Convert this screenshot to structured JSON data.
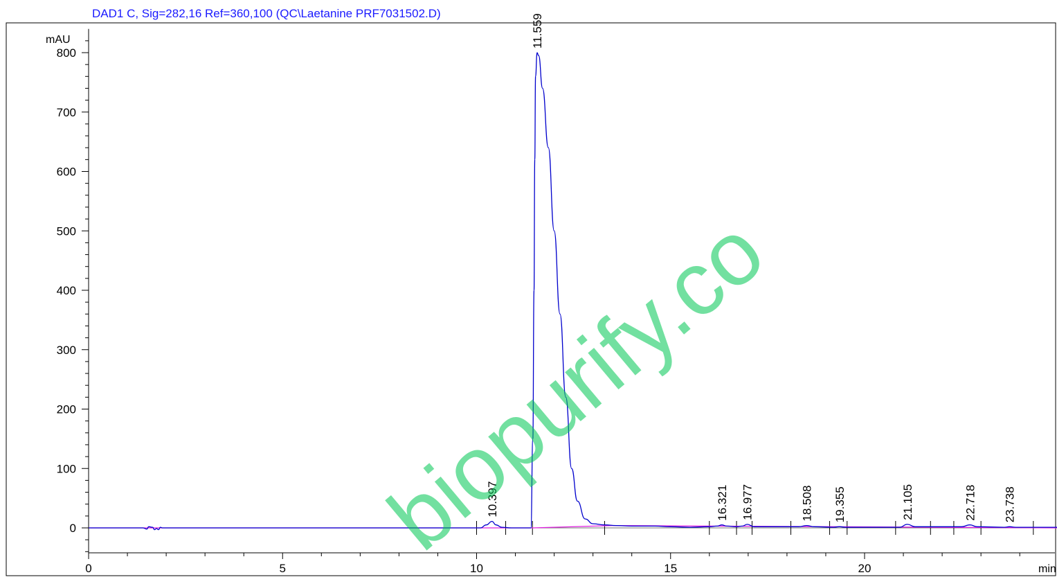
{
  "header": {
    "title": "DAD1 C, Sig=282,16 Ref=360,100 (QC\\Laetanine PRF7031502.D)",
    "watermark": "biopurify.co"
  },
  "colors": {
    "trace": "#0000cc",
    "baseline": "#e020e0",
    "title": "#1a1aff",
    "watermark": "#00c853",
    "axis": "#000000"
  },
  "chart_data": {
    "type": "line",
    "title": "DAD1 C, Sig=282,16 Ref=360,100 (QC\\Laetanine PRF7031502.D)",
    "xlabel": "min",
    "ylabel": "mAU",
    "xlim": [
      0,
      25
    ],
    "ylim": [
      -42,
      840
    ],
    "x_ticks": [
      0,
      5,
      10,
      15,
      20
    ],
    "y_ticks": [
      0,
      100,
      200,
      300,
      400,
      500,
      600,
      700,
      800
    ],
    "grid": false,
    "series": [
      {
        "x": [
          0,
          1.4,
          1.5,
          1.55,
          1.65,
          1.7,
          1.75,
          1.8,
          1.85,
          1.9,
          2.0,
          6.0,
          7.0,
          9.8,
          10.1,
          10.25,
          10.397,
          10.5,
          10.65,
          10.9,
          11.2,
          11.4,
          11.45,
          11.48,
          11.5,
          11.52,
          11.559,
          11.6,
          11.7,
          11.85,
          12.0,
          12.15,
          12.3,
          12.45,
          12.6,
          12.8,
          13.0,
          13.3,
          13.6,
          14.0,
          14.6,
          15.0,
          15.5,
          16.0,
          16.2,
          16.321,
          16.45,
          16.7,
          16.85,
          16.977,
          17.15,
          17.5,
          18.3,
          18.508,
          18.7,
          19.2,
          19.355,
          19.5,
          20.9,
          21.105,
          21.3,
          22.5,
          22.718,
          22.9,
          23.6,
          23.738,
          23.9,
          25.0
        ],
        "y": [
          0,
          0,
          -2,
          2,
          1,
          -3,
          -1,
          -3,
          1,
          0,
          0,
          0,
          0,
          0,
          0,
          5,
          11,
          5,
          1,
          0,
          0,
          0,
          150,
          400,
          620,
          760,
          800,
          795,
          740,
          640,
          500,
          360,
          220,
          100,
          45,
          15,
          7,
          5,
          4,
          3,
          3,
          2,
          1,
          2,
          3,
          5,
          3,
          2,
          3,
          6,
          2,
          2,
          2,
          4,
          2,
          1,
          2,
          1,
          1,
          6,
          2,
          2,
          5,
          2,
          1,
          2,
          1,
          1
        ]
      }
    ],
    "baseline": {
      "x": [
        0,
        11.45,
        13.5,
        16.0,
        25.0
      ],
      "y": [
        0,
        0,
        4,
        3,
        0
      ]
    },
    "peaks": [
      {
        "label": "10.397",
        "x": 10.397,
        "y": 11
      },
      {
        "label": "11.559",
        "x": 11.559,
        "y": 800
      },
      {
        "label": "16.321",
        "x": 16.321,
        "y": 5
      },
      {
        "label": "16.977",
        "x": 16.977,
        "y": 6
      },
      {
        "label": "18.508",
        "x": 18.508,
        "y": 4
      },
      {
        "label": "19.355",
        "x": 19.355,
        "y": 2
      },
      {
        "label": "21.105",
        "x": 21.105,
        "y": 6
      },
      {
        "label": "22.718",
        "x": 22.718,
        "y": 5
      },
      {
        "label": "23.738",
        "x": 23.738,
        "y": 2
      }
    ],
    "integration_marks_x": [
      10.0,
      10.75,
      11.44,
      13.3,
      16.0,
      16.7,
      17.1,
      18.1,
      19.1,
      19.55,
      20.8,
      21.7,
      22.3,
      23.0,
      24.35
    ]
  }
}
